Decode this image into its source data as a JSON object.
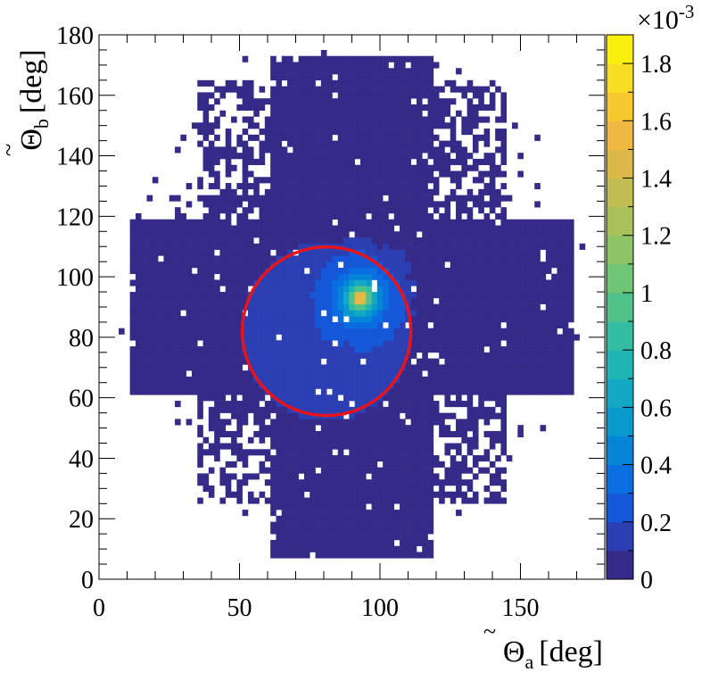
{
  "chart_data": {
    "type": "heatmap",
    "title": "",
    "xlabel": {
      "symbol": "Θ",
      "accent": "~",
      "subscript": "a",
      "unit": "[deg]"
    },
    "ylabel": {
      "symbol": "Θ",
      "accent": "~",
      "subscript": "b",
      "unit": "[deg]"
    },
    "xlim": [
      0,
      180
    ],
    "ylim": [
      0,
      180
    ],
    "xticks": [
      "0",
      "50",
      "100",
      "150"
    ],
    "yticks": [
      "0",
      "20",
      "40",
      "60",
      "80",
      "100",
      "120",
      "140",
      "160",
      "180"
    ],
    "colorbar": {
      "exponent_label": "×10",
      "exponent": "-3",
      "zlim": [
        0,
        1.9
      ],
      "ticks": [
        "0",
        "0.2",
        "0.4",
        "0.6",
        "0.8",
        "1",
        "1.2",
        "1.4",
        "1.6",
        "1.8"
      ],
      "palette": [
        "#352a87",
        "#2b3fb3",
        "#1457d8",
        "#0a6de0",
        "#0584d8",
        "#0899cd",
        "#13a9c4",
        "#1fb5b5",
        "#34bda1",
        "#51c289",
        "#6fc576",
        "#8dc466",
        "#a8c15a",
        "#c3bc52",
        "#dcb84b",
        "#f0b840",
        "#f8c82f",
        "#f9dd22",
        "#f9f00e"
      ]
    },
    "bin_size_deg": 2,
    "distribution": {
      "support_region_deg": {
        "x": [
          5,
          175
        ],
        "y": [
          5,
          175
        ]
      },
      "dense_core_deg": {
        "x": [
          35,
          145
        ],
        "y": [
          25,
          165
        ]
      },
      "peak_deg": {
        "x": 93,
        "y": 93
      },
      "peak_value_e-3": 1.9
    },
    "circle": {
      "center_deg": [
        81,
        82
      ],
      "radius_deg": 30,
      "color": "#e8141b"
    }
  }
}
